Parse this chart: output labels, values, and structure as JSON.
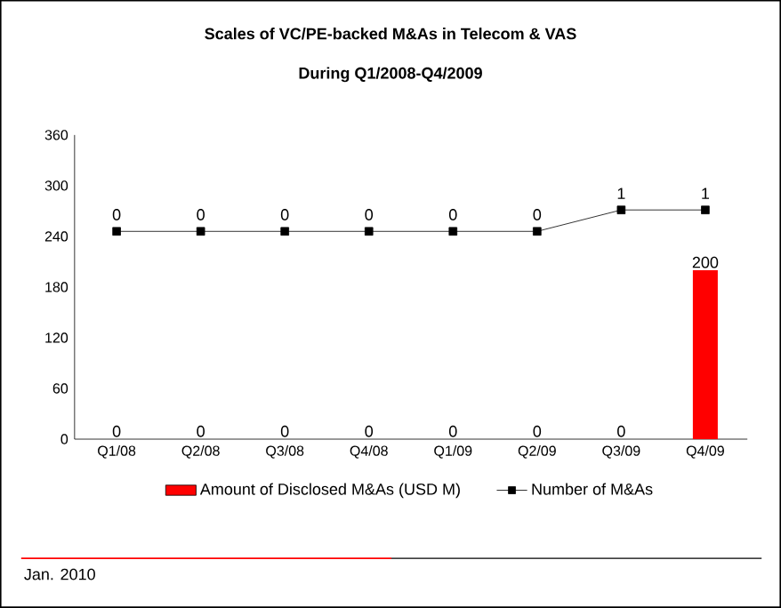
{
  "chart_data": {
    "type": "bar",
    "title": "Scales of VC/PE-backed M&As in Telecom & VAS",
    "subtitle": "During Q1/2008-Q4/2009",
    "categories": [
      "Q1/08",
      "Q2/08",
      "Q3/08",
      "Q4/08",
      "Q1/09",
      "Q2/09",
      "Q3/09",
      "Q4/09"
    ],
    "series": [
      {
        "name": "Amount of Disclosed M&As (USD M)",
        "color": "#ff0000",
        "values": [
          0,
          0,
          0,
          0,
          0,
          0,
          0,
          200
        ]
      },
      {
        "name": "Number of M&As",
        "type": "line",
        "axis": "y2",
        "color": "#000000",
        "marker": "square",
        "values": [
          0,
          0,
          0,
          0,
          0,
          0,
          1,
          1
        ]
      }
    ],
    "ylim": [
      0,
      360
    ],
    "yticks": [
      0,
      60,
      120,
      180,
      240,
      300,
      360
    ],
    "data_labels": true,
    "legend": "bottom",
    "grid": false,
    "annotations": [
      "Jan. 2010"
    ]
  }
}
